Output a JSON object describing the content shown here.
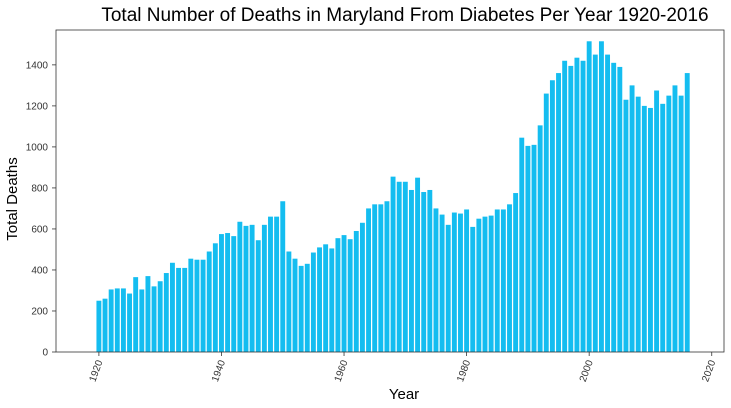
{
  "chart_data": {
    "type": "bar",
    "title": "Total Number of Deaths in Maryland From Diabetes Per Year 1920-2016",
    "xlabel": "Year",
    "ylabel": "Total Deaths",
    "xlim": [
      1913,
      2022
    ],
    "ylim": [
      0,
      1570
    ],
    "xticks": [
      1920,
      1940,
      1960,
      1980,
      2000,
      2020
    ],
    "yticks": [
      0,
      200,
      400,
      600,
      800,
      1000,
      1200,
      1400
    ],
    "grid": false,
    "bar_color": "#14bdf0",
    "x": [
      1920,
      1921,
      1922,
      1923,
      1924,
      1925,
      1926,
      1927,
      1928,
      1929,
      1930,
      1931,
      1932,
      1933,
      1934,
      1935,
      1936,
      1937,
      1938,
      1939,
      1940,
      1941,
      1942,
      1943,
      1944,
      1945,
      1946,
      1947,
      1948,
      1949,
      1950,
      1951,
      1952,
      1953,
      1954,
      1955,
      1956,
      1957,
      1958,
      1959,
      1960,
      1961,
      1962,
      1963,
      1964,
      1965,
      1966,
      1967,
      1968,
      1969,
      1970,
      1971,
      1972,
      1973,
      1974,
      1975,
      1976,
      1977,
      1978,
      1979,
      1980,
      1981,
      1982,
      1983,
      1984,
      1985,
      1986,
      1987,
      1988,
      1989,
      1990,
      1991,
      1992,
      1993,
      1994,
      1995,
      1996,
      1997,
      1998,
      1999,
      2000,
      2001,
      2002,
      2003,
      2004,
      2005,
      2006,
      2007,
      2008,
      2009,
      2010,
      2011,
      2012,
      2013,
      2014,
      2015,
      2016
    ],
    "values": [
      250,
      260,
      305,
      310,
      310,
      285,
      365,
      305,
      370,
      320,
      345,
      385,
      435,
      410,
      410,
      455,
      450,
      450,
      490,
      530,
      575,
      580,
      565,
      635,
      615,
      620,
      545,
      620,
      660,
      660,
      735,
      490,
      455,
      420,
      430,
      485,
      510,
      525,
      505,
      555,
      570,
      550,
      590,
      630,
      700,
      720,
      720,
      735,
      855,
      830,
      830,
      790,
      850,
      780,
      790,
      700,
      670,
      620,
      680,
      675,
      695,
      610,
      650,
      660,
      665,
      695,
      695,
      720,
      775,
      1045,
      1005,
      1010,
      1105,
      1260,
      1325,
      1360,
      1420,
      1395,
      1435,
      1420,
      1515,
      1450,
      1515,
      1450,
      1410,
      1390,
      1230,
      1300,
      1245,
      1200,
      1190,
      1275,
      1210,
      1250,
      1300,
      1250,
      1360
    ]
  }
}
